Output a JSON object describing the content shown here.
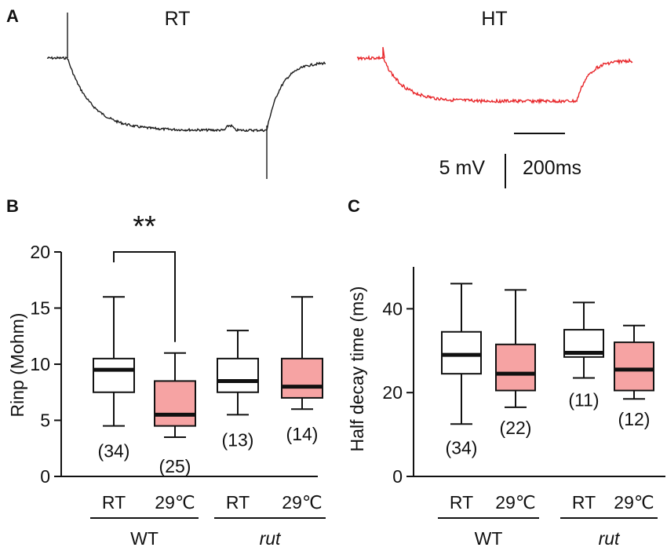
{
  "panel_labels": {
    "a": "A",
    "b": "B",
    "c": "C"
  },
  "panel_a": {
    "trace_left_label": "RT",
    "trace_right_label": "HT",
    "trace_left_color": "#1a1a1a",
    "trace_right_color": "#e8262a",
    "scalebar_voltage": "5 mV",
    "scalebar_time": "200ms"
  },
  "colors": {
    "rt_box": "#ffffff",
    "ht_box": "#f6a3a3",
    "stroke": "#111111"
  },
  "chart_data": [
    {
      "type": "box",
      "panel": "B",
      "ylabel": "Rinp (Mohm)",
      "ylim": [
        0,
        20
      ],
      "yticks": [
        0,
        5,
        10,
        15,
        20
      ],
      "groups": [
        {
          "name": "WT",
          "italic": false,
          "conditions": [
            "RT",
            "29℃"
          ]
        },
        {
          "name": "rut",
          "italic": true,
          "conditions": [
            "RT",
            "29℃"
          ]
        }
      ],
      "boxes": [
        {
          "group": "WT",
          "condition": "RT",
          "fill": "rt",
          "min": 4.5,
          "q1": 7.5,
          "median": 9.5,
          "q3": 10.5,
          "max": 16,
          "n": "(34)"
        },
        {
          "group": "WT",
          "condition": "29℃",
          "fill": "ht",
          "min": 3.5,
          "q1": 4.5,
          "median": 5.5,
          "q3": 8.5,
          "max": 11,
          "n": "(25)"
        },
        {
          "group": "rut",
          "condition": "RT",
          "fill": "rt",
          "min": 5.5,
          "q1": 7.5,
          "median": 8.5,
          "q3": 10.5,
          "max": 13,
          "n": "(13)"
        },
        {
          "group": "rut",
          "condition": "29℃",
          "fill": "ht",
          "min": 6,
          "q1": 7,
          "median": 8,
          "q3": 10.5,
          "max": 16,
          "n": "(14)"
        }
      ],
      "significance": {
        "label": "**",
        "between": [
          0,
          1
        ],
        "y": 20
      }
    },
    {
      "type": "box",
      "panel": "C",
      "ylabel": "Half decay time (ms)",
      "ylim": [
        0,
        50
      ],
      "yticks": [
        0,
        20,
        40
      ],
      "groups": [
        {
          "name": "WT",
          "italic": false,
          "conditions": [
            "RT",
            "29℃"
          ]
        },
        {
          "name": "rut",
          "italic": true,
          "conditions": [
            "RT",
            "29℃"
          ]
        }
      ],
      "boxes": [
        {
          "group": "WT",
          "condition": "RT",
          "fill": "rt",
          "min": 12.5,
          "q1": 24.5,
          "median": 29,
          "q3": 34.5,
          "max": 46,
          "n": "(34)"
        },
        {
          "group": "WT",
          "condition": "29℃",
          "fill": "ht",
          "min": 16.5,
          "q1": 20.5,
          "median": 24.5,
          "q3": 31.5,
          "max": 44.5,
          "n": "(22)"
        },
        {
          "group": "rut",
          "condition": "RT",
          "fill": "rt",
          "min": 23.5,
          "q1": 28.5,
          "median": 29.5,
          "q3": 35,
          "max": 41.5,
          "n": "(11)"
        },
        {
          "group": "rut",
          "condition": "29℃",
          "fill": "ht",
          "min": 18.5,
          "q1": 20.5,
          "median": 25.5,
          "q3": 32,
          "max": 36,
          "n": "(12)"
        }
      ]
    }
  ]
}
